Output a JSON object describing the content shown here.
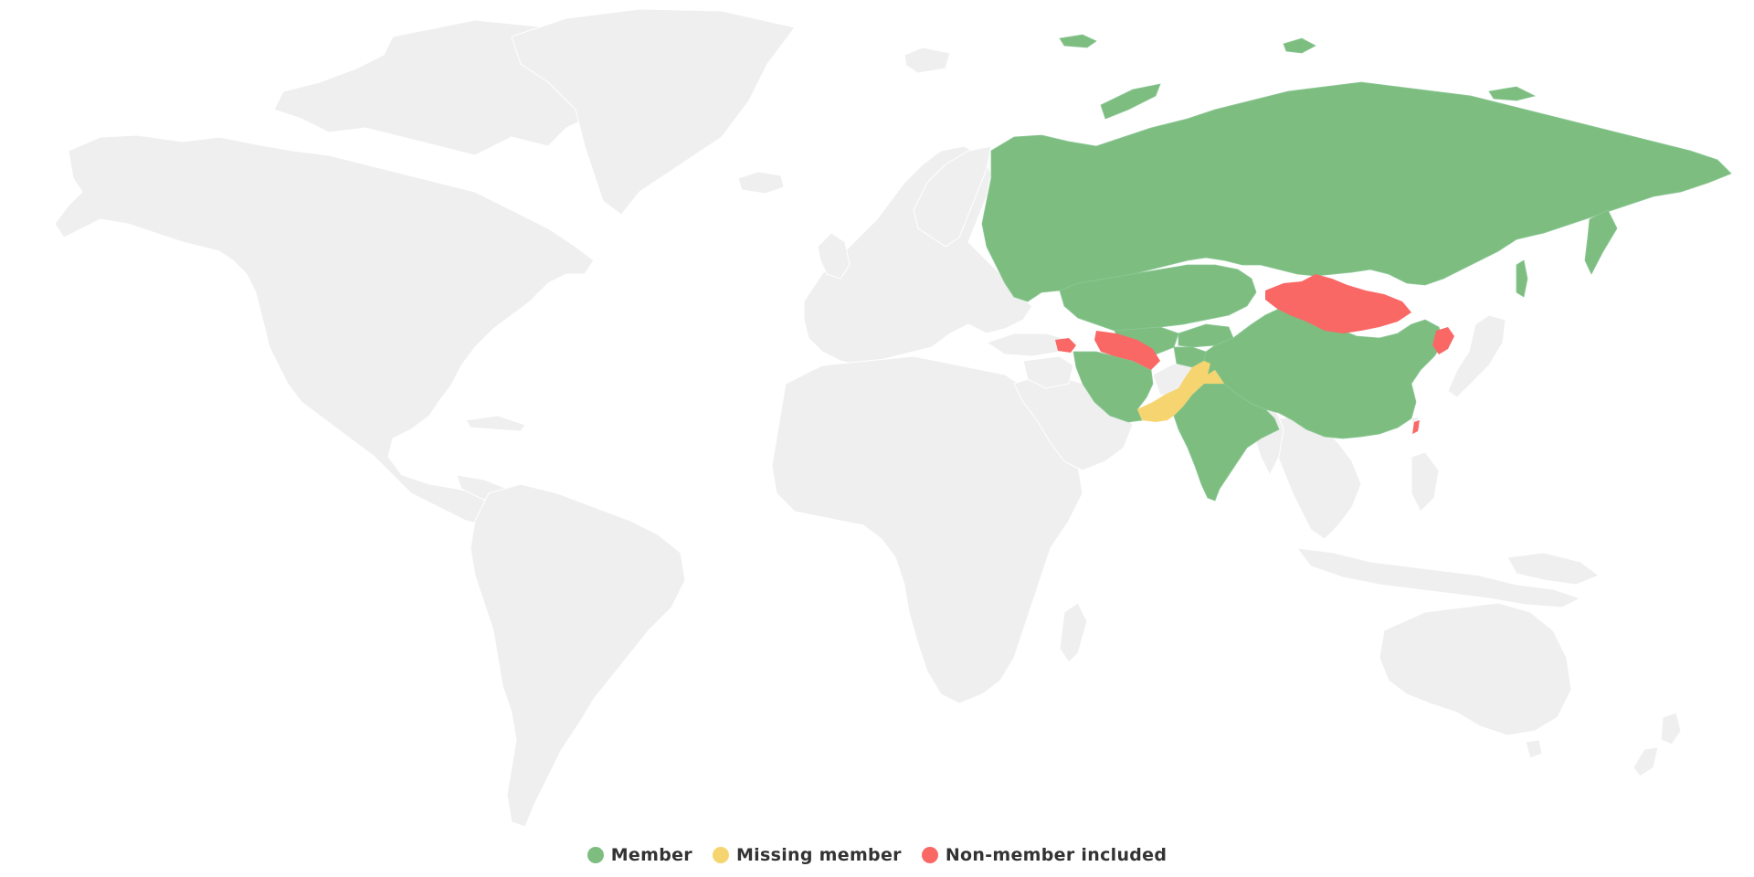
{
  "colors": {
    "background": "#ffffff",
    "land": "#efefef",
    "member": "#7dbe80",
    "missing_member": "#f6d570",
    "non_member_included": "#f96865"
  },
  "legend": {
    "items": [
      {
        "label": "Member",
        "color": "#7dbe80"
      },
      {
        "label": "Missing member",
        "color": "#f6d570"
      },
      {
        "label": "Non-member included",
        "color": "#f96865"
      }
    ]
  }
}
